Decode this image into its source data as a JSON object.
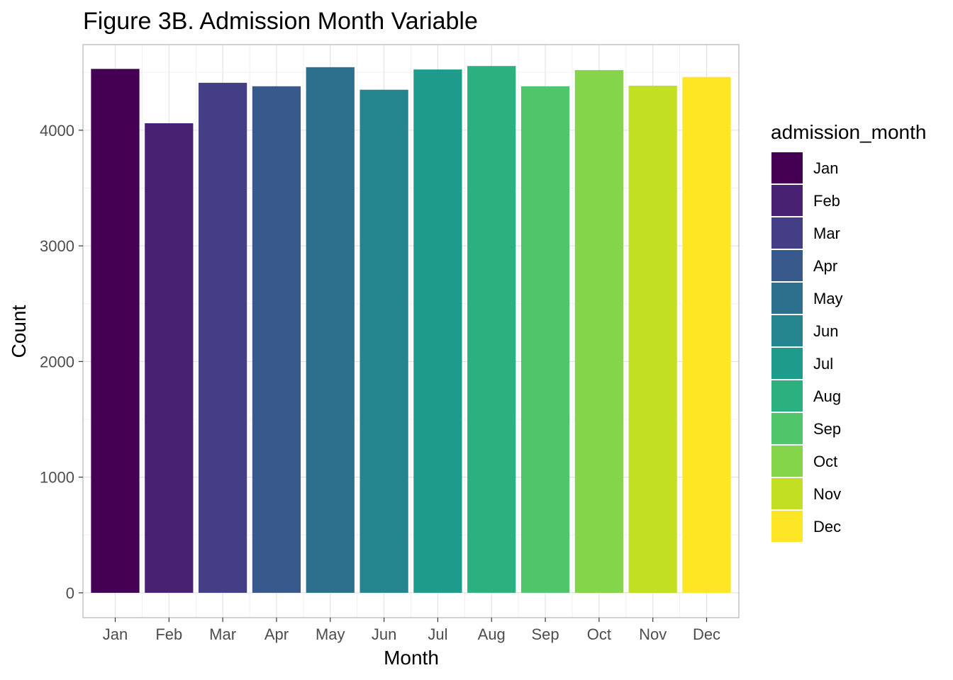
{
  "chart_data": {
    "type": "bar",
    "title": "Figure 3B. Admission Month Variable",
    "xlabel": "Month",
    "ylabel": "Count",
    "categories": [
      "Jan",
      "Feb",
      "Mar",
      "Apr",
      "May",
      "Jun",
      "Jul",
      "Aug",
      "Sep",
      "Oct",
      "Nov",
      "Dec"
    ],
    "values": [
      4530,
      4060,
      4410,
      4380,
      4545,
      4350,
      4525,
      4555,
      4380,
      4520,
      4385,
      4460
    ],
    "ylim": [
      -215,
      4740
    ],
    "yticks": [
      0,
      1000,
      2000,
      3000,
      4000
    ],
    "grid": true,
    "legend": {
      "title": "admission_month",
      "placement": "right",
      "entries": [
        "Jan",
        "Feb",
        "Mar",
        "Apr",
        "May",
        "Jun",
        "Jul",
        "Aug",
        "Sep",
        "Oct",
        "Nov",
        "Dec"
      ]
    },
    "colors": [
      "#440154",
      "#482173",
      "#433E85",
      "#38598C",
      "#2D708E",
      "#25858E",
      "#1E9B8A",
      "#2BB07F",
      "#51C56A",
      "#85D54A",
      "#C2DF23",
      "#FDE725"
    ]
  }
}
